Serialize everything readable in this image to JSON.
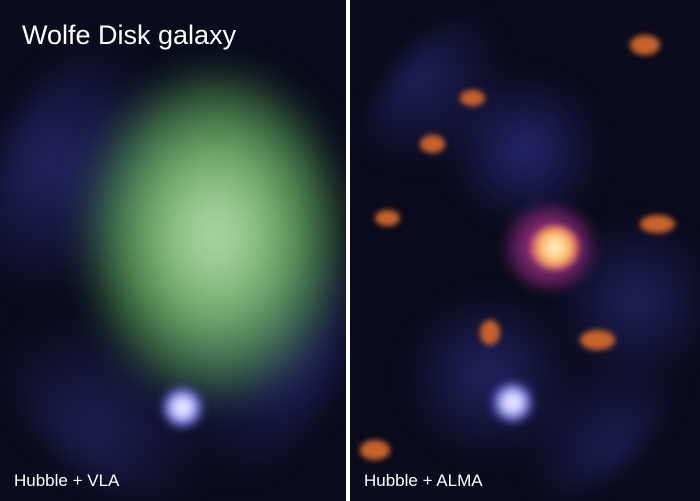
{
  "left_panel": {
    "title": "Wolfe Disk galaxy",
    "caption": "Hubble + VLA"
  },
  "right_panel": {
    "caption": "Hubble + ALMA"
  },
  "colors": {
    "background": "#0a0b1c",
    "hi_gas": "#7fcf7a",
    "stars": "#4a4fc0",
    "dust": "#d0642a",
    "core": "#ffe0a0"
  }
}
